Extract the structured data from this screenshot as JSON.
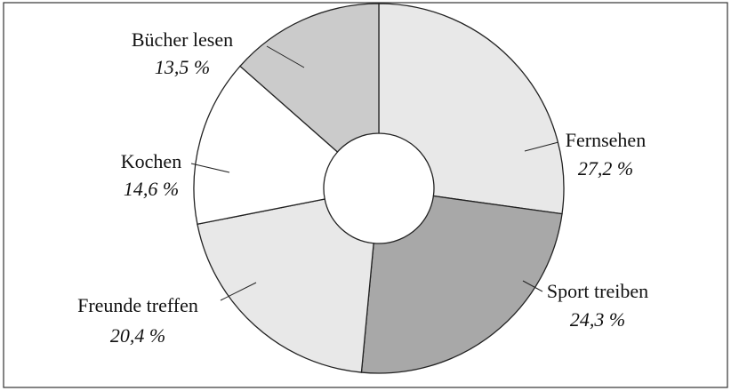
{
  "chart_data": {
    "type": "pie",
    "donut": true,
    "categories": [
      "Fernsehen",
      "Sport treiben",
      "Freunde treffen",
      "Kochen",
      "Bücher lesen"
    ],
    "values": [
      27.2,
      24.3,
      20.4,
      14.6,
      13.5
    ],
    "value_labels": [
      "27,2 %",
      "24,3 %",
      "20,4 %",
      "14,6 %",
      "13,5 %"
    ],
    "colors": [
      "#e8e8e8",
      "#a8a8a8",
      "#e8e8e8",
      "#ffffff",
      "#cbcbcb"
    ]
  }
}
